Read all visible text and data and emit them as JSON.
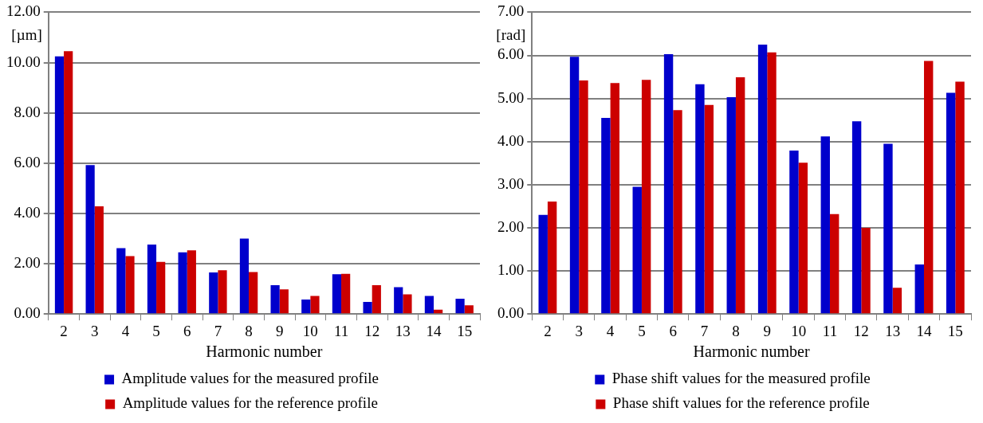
{
  "chart_data": [
    {
      "type": "bar",
      "xlabel": "Harmonic number",
      "ylabel": "[µm]",
      "categories": [
        "2",
        "3",
        "4",
        "5",
        "6",
        "7",
        "8",
        "9",
        "10",
        "11",
        "12",
        "13",
        "14",
        "15"
      ],
      "series": [
        {
          "name": "Amplitude values for the measured profile",
          "color": "#0000cc",
          "values": [
            10.25,
            5.92,
            2.62,
            2.76,
            2.45,
            1.65,
            3.0,
            1.15,
            0.58,
            1.58,
            0.48,
            1.07,
            0.72,
            0.61
          ]
        },
        {
          "name": "Amplitude values for the reference profile",
          "color": "#cc0000",
          "values": [
            10.45,
            4.28,
            2.3,
            2.07,
            2.53,
            1.74,
            1.67,
            0.98,
            0.72,
            1.6,
            1.15,
            0.78,
            0.17,
            0.35
          ]
        }
      ],
      "ylim": [
        0,
        12
      ],
      "yticks": [
        {
          "value": 0,
          "label": "0.00"
        },
        {
          "value": 2,
          "label": "2.00"
        },
        {
          "value": 4,
          "label": "4.00"
        },
        {
          "value": 6,
          "label": "6.00"
        },
        {
          "value": 8,
          "label": "8.00"
        },
        {
          "value": 10,
          "label": "10.00"
        },
        {
          "value": 12,
          "label": "12.00"
        }
      ],
      "grid": "y",
      "legend": "bottom"
    },
    {
      "type": "bar",
      "xlabel": "Harmonic number",
      "ylabel": "[rad]",
      "categories": [
        "2",
        "3",
        "4",
        "5",
        "6",
        "7",
        "8",
        "9",
        "10",
        "11",
        "12",
        "13",
        "14",
        "15"
      ],
      "series": [
        {
          "name": "Phase shift values for the measured profile",
          "color": "#0000cc",
          "values": [
            2.3,
            5.97,
            4.55,
            2.95,
            6.03,
            5.33,
            5.03,
            6.25,
            3.79,
            4.12,
            4.47,
            3.95,
            1.15,
            5.13
          ]
        },
        {
          "name": "Phase shift values for the reference profile",
          "color": "#cc0000",
          "values": [
            2.61,
            5.42,
            5.36,
            5.43,
            4.73,
            4.85,
            5.49,
            6.07,
            3.51,
            2.32,
            2.0,
            0.61,
            5.87,
            5.39
          ]
        }
      ],
      "ylim": [
        0,
        7
      ],
      "yticks": [
        {
          "value": 0,
          "label": "0.00"
        },
        {
          "value": 1,
          "label": "1.00"
        },
        {
          "value": 2,
          "label": "2.00"
        },
        {
          "value": 3,
          "label": "3.00"
        },
        {
          "value": 4,
          "label": "4.00"
        },
        {
          "value": 5,
          "label": "5.00"
        },
        {
          "value": 6,
          "label": "6.00"
        },
        {
          "value": 7,
          "label": "7.00"
        }
      ],
      "grid": "y",
      "legend": "bottom"
    }
  ]
}
